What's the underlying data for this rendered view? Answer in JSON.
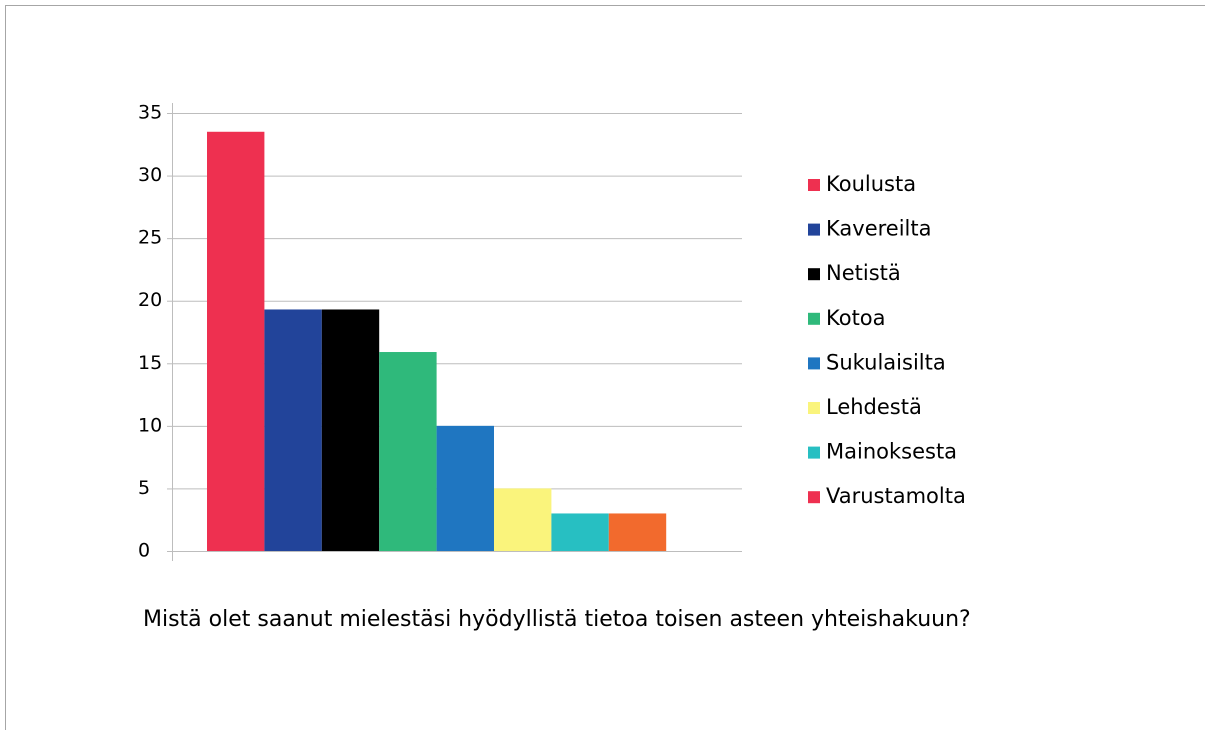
{
  "chart_data": {
    "type": "bar",
    "title": "Mistä olet saanut mielestäsi hyödyllistä tietoa toisen asteen yhteishakuun?",
    "categories": [
      null
    ],
    "series": [
      {
        "name": "Koulusta",
        "color": "#ee3050",
        "values": [
          33.5
        ]
      },
      {
        "name": "Kavereilta",
        "color": "#22449a",
        "values": [
          19.3
        ]
      },
      {
        "name": "Netistä",
        "color": "#000000",
        "values": [
          19.3
        ]
      },
      {
        "name": "Kotoa",
        "color": "#2fb97b",
        "values": [
          15.9
        ]
      },
      {
        "name": "Sukulaisilta",
        "color": "#1f76c1",
        "values": [
          10
        ]
      },
      {
        "name": "Lehdestä",
        "color": "#faf47c",
        "values": [
          5
        ]
      },
      {
        "name": "Mainoksesta",
        "color": "#27bfc2",
        "values": [
          3
        ]
      },
      {
        "name": "Varustamolta",
        "color": "#f26a2d",
        "legend_color": "#ee3050",
        "values": [
          3
        ]
      }
    ],
    "ylim": [
      0,
      35
    ],
    "yticks": [
      0,
      5,
      10,
      15,
      20,
      25,
      30,
      35
    ],
    "grid": true,
    "legend": "right"
  }
}
